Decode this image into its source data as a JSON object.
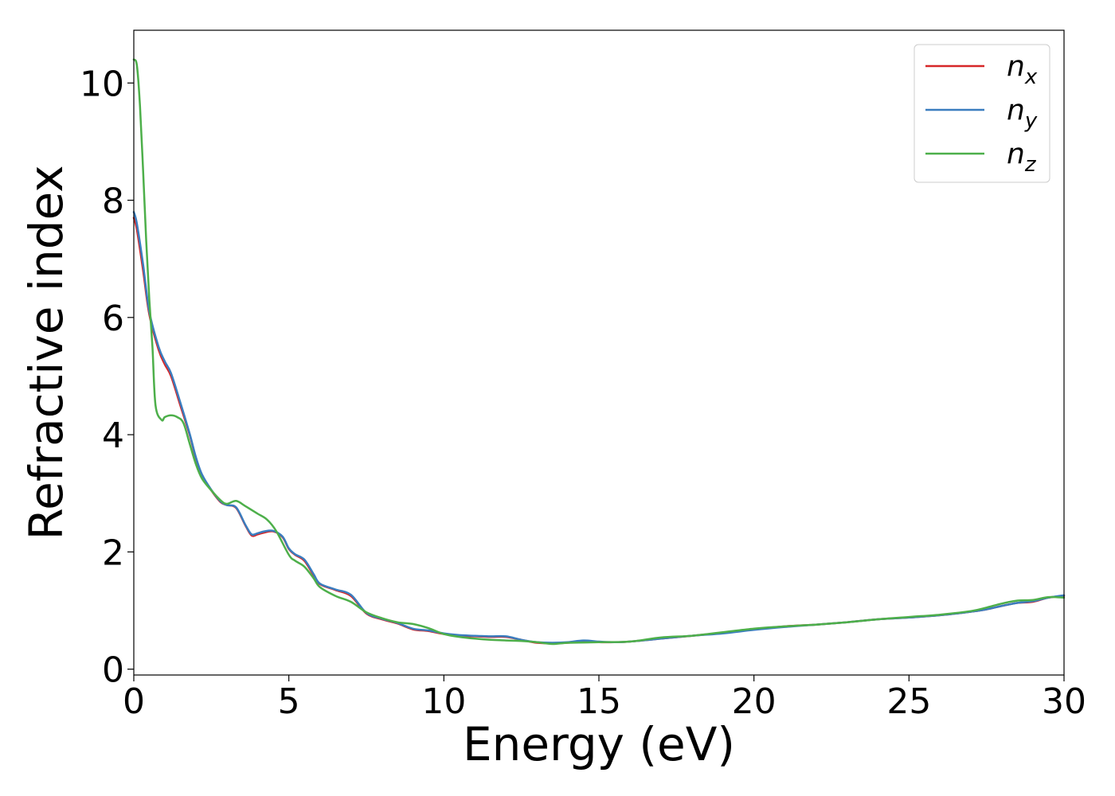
{
  "chart_data": {
    "type": "line",
    "xlabel": "Energy (eV)",
    "ylabel": "Refractive index",
    "xlim": [
      0,
      30
    ],
    "ylim": [
      -0.1,
      10.9
    ],
    "xticks": [
      0,
      5,
      10,
      15,
      20,
      25,
      30
    ],
    "xtick_labels": [
      "0",
      "5",
      "10",
      "15",
      "20",
      "25",
      "30"
    ],
    "yticks": [
      0,
      2,
      4,
      6,
      8,
      10
    ],
    "ytick_labels": [
      "0",
      "2",
      "4",
      "6",
      "8",
      "10"
    ],
    "grid": false,
    "legend_position": "top-right",
    "legend": [
      {
        "base": "n",
        "sub": "x"
      },
      {
        "base": "n",
        "sub": "y"
      },
      {
        "base": "n",
        "sub": "z"
      }
    ],
    "colors": [
      "#d62728",
      "#3a7dbf",
      "#4daf4a"
    ],
    "series": [
      {
        "x": [
          0,
          0.1,
          0.3,
          0.5,
          0.8,
          1.0,
          1.2,
          1.5,
          1.8,
          2.0,
          2.2,
          2.5,
          2.8,
          3.0,
          3.3,
          3.6,
          3.8,
          4.0,
          4.2,
          4.5,
          4.8,
          5.0,
          5.2,
          5.5,
          5.8,
          6.0,
          6.5,
          7.0,
          7.5,
          8.0,
          8.5,
          9.0,
          9.5,
          10.0,
          10.5,
          11.0,
          11.5,
          12.0,
          12.5,
          13.0,
          13.5,
          14.0,
          14.5,
          15.0,
          15.5,
          16.0,
          17.0,
          18.0,
          19.0,
          20.0,
          21.0,
          22.0,
          23.0,
          24.0,
          25.0,
          26.0,
          27.0,
          27.5,
          28.0,
          28.5,
          29.0,
          29.5,
          30.0
        ],
        "values": [
          7.7,
          7.5,
          6.8,
          6.05,
          5.45,
          5.2,
          5.0,
          4.5,
          4.0,
          3.6,
          3.3,
          3.05,
          2.85,
          2.8,
          2.75,
          2.45,
          2.28,
          2.3,
          2.33,
          2.35,
          2.25,
          2.05,
          1.95,
          1.85,
          1.6,
          1.45,
          1.35,
          1.25,
          0.95,
          0.85,
          0.78,
          0.68,
          0.65,
          0.6,
          0.57,
          0.56,
          0.55,
          0.55,
          0.5,
          0.45,
          0.44,
          0.45,
          0.48,
          0.46,
          0.46,
          0.47,
          0.52,
          0.57,
          0.62,
          0.68,
          0.73,
          0.76,
          0.8,
          0.85,
          0.88,
          0.92,
          0.98,
          1.02,
          1.08,
          1.13,
          1.15,
          1.22,
          1.25
        ]
      },
      {
        "x": [
          0,
          0.1,
          0.3,
          0.5,
          0.8,
          1.0,
          1.2,
          1.5,
          1.8,
          2.0,
          2.2,
          2.5,
          2.8,
          3.0,
          3.3,
          3.6,
          3.8,
          4.0,
          4.2,
          4.5,
          4.8,
          5.0,
          5.2,
          5.5,
          5.8,
          6.0,
          6.5,
          7.0,
          7.5,
          8.0,
          8.5,
          9.0,
          9.5,
          10.0,
          10.5,
          11.0,
          11.5,
          12.0,
          12.5,
          13.0,
          13.5,
          14.0,
          14.5,
          15.0,
          15.5,
          16.0,
          17.0,
          18.0,
          19.0,
          20.0,
          21.0,
          22.0,
          23.0,
          24.0,
          25.0,
          26.0,
          27.0,
          27.5,
          28.0,
          28.5,
          29.0,
          29.5,
          30.0
        ],
        "values": [
          7.8,
          7.6,
          6.9,
          6.1,
          5.5,
          5.25,
          5.05,
          4.55,
          4.02,
          3.62,
          3.32,
          3.06,
          2.86,
          2.8,
          2.76,
          2.46,
          2.3,
          2.32,
          2.35,
          2.36,
          2.26,
          2.06,
          1.96,
          1.87,
          1.62,
          1.46,
          1.36,
          1.27,
          0.96,
          0.86,
          0.79,
          0.69,
          0.66,
          0.61,
          0.58,
          0.57,
          0.56,
          0.56,
          0.5,
          0.46,
          0.45,
          0.46,
          0.49,
          0.47,
          0.46,
          0.47,
          0.52,
          0.57,
          0.61,
          0.67,
          0.72,
          0.76,
          0.8,
          0.85,
          0.88,
          0.92,
          0.98,
          1.02,
          1.08,
          1.13,
          1.16,
          1.22,
          1.26
        ]
      },
      {
        "x": [
          0,
          0.1,
          0.2,
          0.3,
          0.4,
          0.5,
          0.6,
          0.7,
          0.9,
          1.0,
          1.2,
          1.4,
          1.6,
          1.8,
          2.0,
          2.2,
          2.5,
          2.8,
          3.0,
          3.3,
          3.6,
          4.0,
          4.3,
          4.6,
          5.0,
          5.2,
          5.5,
          5.8,
          6.0,
          6.5,
          7.0,
          7.5,
          8.0,
          8.5,
          9.0,
          9.5,
          10.0,
          10.5,
          11.0,
          11.5,
          12.0,
          12.5,
          13.0,
          13.5,
          14.0,
          15.0,
          16.0,
          17.0,
          18.0,
          19.0,
          20.0,
          21.0,
          22.0,
          23.0,
          24.0,
          25.0,
          26.0,
          27.0,
          27.5,
          28.0,
          28.5,
          29.0,
          29.5,
          30.0
        ],
        "values": [
          10.4,
          10.3,
          9.6,
          8.5,
          7.3,
          6.3,
          5.5,
          4.5,
          4.25,
          4.3,
          4.33,
          4.3,
          4.2,
          3.85,
          3.5,
          3.25,
          3.05,
          2.88,
          2.82,
          2.87,
          2.78,
          2.65,
          2.55,
          2.35,
          1.95,
          1.85,
          1.75,
          1.55,
          1.4,
          1.25,
          1.15,
          0.97,
          0.87,
          0.8,
          0.77,
          0.7,
          0.6,
          0.55,
          0.52,
          0.5,
          0.49,
          0.48,
          0.46,
          0.43,
          0.45,
          0.46,
          0.47,
          0.54,
          0.57,
          0.63,
          0.69,
          0.73,
          0.76,
          0.8,
          0.85,
          0.89,
          0.93,
          0.99,
          1.05,
          1.12,
          1.17,
          1.18,
          1.23,
          1.22
        ]
      }
    ]
  }
}
